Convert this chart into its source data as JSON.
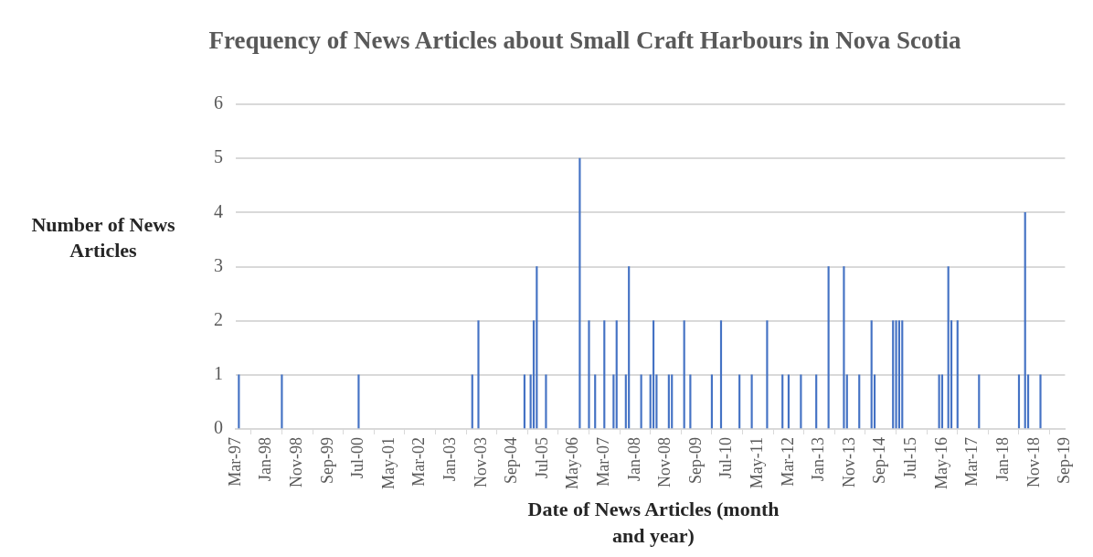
{
  "chart_data": {
    "type": "bar",
    "title": "Frequency of News Articles about Small Craft Harbours in Nova Scotia",
    "xlabel": "Date of News Articles (month and year)",
    "ylabel": "Number of News Articles",
    "color": "#4472c4",
    "grid": "y",
    "x": [
      "1997-04",
      "1998-06",
      "2000-07",
      "2003-08",
      "2003-10",
      "2005-01",
      "2005-03",
      "2005-04",
      "2005-05",
      "2005-08",
      "2006-07",
      "2006-10",
      "2006-12",
      "2007-03",
      "2007-06",
      "2007-07",
      "2007-10",
      "2007-11",
      "2008-03",
      "2008-06",
      "2008-07",
      "2008-08",
      "2008-12",
      "2009-01",
      "2009-05",
      "2009-07",
      "2010-02",
      "2010-05",
      "2010-11",
      "2011-03",
      "2011-08",
      "2012-01",
      "2012-03",
      "2012-07",
      "2012-12",
      "2013-04",
      "2013-09",
      "2013-10",
      "2014-02",
      "2014-06",
      "2014-07",
      "2015-01",
      "2015-02",
      "2015-03",
      "2015-04",
      "2016-04",
      "2016-05",
      "2016-07",
      "2016-08",
      "2016-10",
      "2017-05",
      "2018-06",
      "2018-08",
      "2018-09",
      "2019-01"
    ],
    "values": [
      1,
      1,
      1,
      1,
      2,
      1,
      1,
      2,
      3,
      1,
      5,
      2,
      1,
      2,
      1,
      2,
      1,
      3,
      1,
      1,
      2,
      1,
      1,
      1,
      2,
      1,
      1,
      2,
      1,
      1,
      2,
      1,
      1,
      1,
      1,
      3,
      3,
      1,
      1,
      2,
      1,
      2,
      2,
      2,
      2,
      1,
      1,
      3,
      2,
      2,
      1,
      1,
      4,
      1,
      1
    ],
    "xlim": [
      "1997-03",
      "2019-09"
    ],
    "xticks": [
      {
        "value": "1997-03",
        "label": "Mar-97"
      },
      {
        "value": "1998-01",
        "label": "Jan-98"
      },
      {
        "value": "1998-11",
        "label": "Nov-98"
      },
      {
        "value": "1999-09",
        "label": "Sep-99"
      },
      {
        "value": "2000-07",
        "label": "Jul-00"
      },
      {
        "value": "2001-05",
        "label": "May-01"
      },
      {
        "value": "2002-03",
        "label": "Mar-02"
      },
      {
        "value": "2003-01",
        "label": "Jan-03"
      },
      {
        "value": "2003-11",
        "label": "Nov-03"
      },
      {
        "value": "2004-09",
        "label": "Sep-04"
      },
      {
        "value": "2005-07",
        "label": "Jul-05"
      },
      {
        "value": "2006-05",
        "label": "May-06"
      },
      {
        "value": "2007-03",
        "label": "Mar-07"
      },
      {
        "value": "2008-01",
        "label": "Jan-08"
      },
      {
        "value": "2008-11",
        "label": "Nov-08"
      },
      {
        "value": "2009-09",
        "label": "Sep-09"
      },
      {
        "value": "2010-07",
        "label": "Jul-10"
      },
      {
        "value": "2011-05",
        "label": "May-11"
      },
      {
        "value": "2012-03",
        "label": "Mar-12"
      },
      {
        "value": "2013-01",
        "label": "Jan-13"
      },
      {
        "value": "2013-11",
        "label": "Nov-13"
      },
      {
        "value": "2014-09",
        "label": "Sep-14"
      },
      {
        "value": "2015-07",
        "label": "Jul-15"
      },
      {
        "value": "2016-05",
        "label": "May-16"
      },
      {
        "value": "2017-03",
        "label": "Mar-17"
      },
      {
        "value": "2018-01",
        "label": "Jan-18"
      },
      {
        "value": "2018-11",
        "label": "Nov-18"
      },
      {
        "value": "2019-09",
        "label": "Sep-19"
      }
    ],
    "ylim": [
      0,
      6
    ],
    "yticks": [
      0,
      1,
      2,
      3,
      4,
      5,
      6
    ]
  }
}
